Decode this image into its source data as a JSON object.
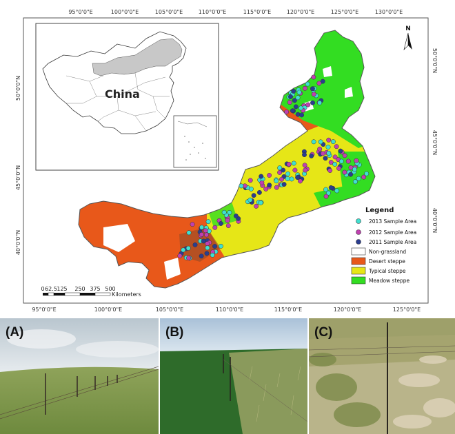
{
  "map": {
    "top_ticks": [
      "95°0'0\"E",
      "100°0'0\"E",
      "105°0'0\"E",
      "110°0'0\"E",
      "115°0'0\"E",
      "120°0'0\"E",
      "125°0'0\"E",
      "130°0'0\"E"
    ],
    "bottom_ticks": [
      "95°0'0\"E",
      "100°0'0\"E",
      "105°0'0\"E",
      "110°0'0\"E",
      "115°0'0\"E",
      "120°0'0\"E",
      "125°0'0\"E"
    ],
    "left_ticks": [
      "50°0'0\"N",
      "45°0'0\"N",
      "40°0'0\"N"
    ],
    "right_ticks": [
      "50°0'0\"N",
      "45°0'0\"N",
      "40°0'0\"N"
    ],
    "north_label": "N",
    "inset_label": "China",
    "scale": {
      "ticks": [
        "0",
        "62.5",
        "125",
        "250",
        "375",
        "500"
      ],
      "unit": "Kilometers"
    },
    "legend": {
      "title": "Legend",
      "items": [
        {
          "label": "2013 Sample Area",
          "kind": "dot",
          "color": "#40e0d0"
        },
        {
          "label": "2012 Sample Area",
          "kind": "dot",
          "color": "#c040b0"
        },
        {
          "label": "2011 Sample Area",
          "kind": "dot",
          "color": "#2a3d8f"
        },
        {
          "label": "Non-grassland",
          "kind": "box",
          "color": "#ffffff"
        },
        {
          "label": "Desert steppe",
          "kind": "box",
          "color": "#e8581a"
        },
        {
          "label": "Typical steppe",
          "kind": "box",
          "color": "#e6e617"
        },
        {
          "label": "Meadow steppe",
          "kind": "box",
          "color": "#33dd22"
        }
      ]
    }
  },
  "photos": [
    {
      "label": "(A)"
    },
    {
      "label": "(B)"
    },
    {
      "label": "(C)"
    }
  ]
}
